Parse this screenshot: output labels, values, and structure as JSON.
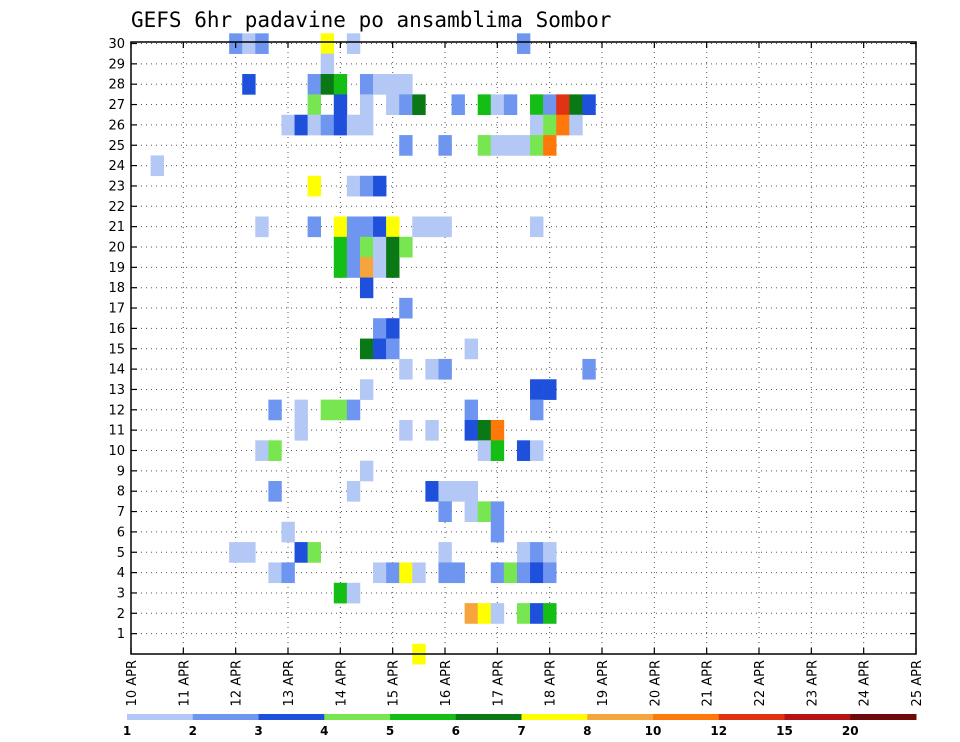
{
  "chart_data": {
    "type": "heatmap",
    "title": "GEFS 6hr padavine po ansamblima Sombor",
    "x_tick_labels": [
      "10 APR",
      "11 APR",
      "12 APR",
      "13 APR",
      "14 APR",
      "15 APR",
      "16 APR",
      "17 APR",
      "18 APR",
      "19 APR",
      "20 APR",
      "21 APR",
      "22 APR",
      "23 APR",
      "24 APR",
      "25 APR"
    ],
    "y_tick_labels": [
      "1",
      "2",
      "3",
      "4",
      "5",
      "6",
      "7",
      "8",
      "9",
      "10",
      "11",
      "12",
      "13",
      "14",
      "15",
      "16",
      "17",
      "18",
      "19",
      "20",
      "21",
      "22",
      "23",
      "24",
      "25",
      "26",
      "27",
      "28",
      "29",
      "30"
    ],
    "xlim": [
      "10 APR",
      "25 APR"
    ],
    "x_step_hours": 6,
    "ylim": [
      1,
      30
    ],
    "grid": true,
    "legend_position": "bottom",
    "legend_bins": [
      {
        "label": "1",
        "color": "#b4c8f5"
      },
      {
        "label": "2",
        "color": "#6e96f0"
      },
      {
        "label": "3",
        "color": "#1e50dc"
      },
      {
        "label": "4",
        "color": "#78e650"
      },
      {
        "label": "5",
        "color": "#14be14"
      },
      {
        "label": "6",
        "color": "#0a7814"
      },
      {
        "label": "7",
        "color": "#ffff00"
      },
      {
        "label": "8",
        "color": "#f5a53c"
      },
      {
        "label": "10",
        "color": "#ff780a"
      },
      {
        "label": "12",
        "color": "#e13214"
      },
      {
        "label": "15",
        "color": "#b41414"
      },
      {
        "label": "20",
        "color": "#6e0a0a"
      }
    ],
    "cells_note": "each cell: [time step index from 10 APR 00z in 6h steps, ensemble member, legend bin index]",
    "cells": [
      [
        8,
        30,
        1
      ],
      [
        9,
        30,
        0
      ],
      [
        10,
        30,
        1
      ],
      [
        15,
        30,
        6
      ],
      [
        17,
        30,
        0
      ],
      [
        30,
        30,
        1
      ],
      [
        15,
        29,
        0
      ],
      [
        9,
        28,
        2
      ],
      [
        14,
        28,
        1
      ],
      [
        15,
        28,
        5
      ],
      [
        16,
        28,
        4
      ],
      [
        18,
        28,
        1
      ],
      [
        19,
        28,
        0
      ],
      [
        20,
        28,
        0
      ],
      [
        21,
        28,
        0
      ],
      [
        14,
        27,
        3
      ],
      [
        16,
        27,
        2
      ],
      [
        18,
        27,
        0
      ],
      [
        20,
        27,
        0
      ],
      [
        21,
        27,
        1
      ],
      [
        22,
        27,
        5
      ],
      [
        25,
        27,
        1
      ],
      [
        27,
        27,
        4
      ],
      [
        28,
        27,
        0
      ],
      [
        29,
        27,
        1
      ],
      [
        31,
        27,
        4
      ],
      [
        32,
        27,
        1
      ],
      [
        33,
        27,
        9
      ],
      [
        34,
        27,
        5
      ],
      [
        35,
        27,
        2
      ],
      [
        12,
        26,
        0
      ],
      [
        13,
        26,
        2
      ],
      [
        14,
        26,
        0
      ],
      [
        15,
        26,
        1
      ],
      [
        16,
        26,
        2
      ],
      [
        17,
        26,
        0
      ],
      [
        18,
        26,
        0
      ],
      [
        31,
        26,
        0
      ],
      [
        32,
        26,
        3
      ],
      [
        33,
        26,
        8
      ],
      [
        34,
        26,
        0
      ],
      [
        21,
        25,
        1
      ],
      [
        24,
        25,
        1
      ],
      [
        27,
        25,
        3
      ],
      [
        28,
        25,
        0
      ],
      [
        29,
        25,
        0
      ],
      [
        30,
        25,
        0
      ],
      [
        31,
        25,
        3
      ],
      [
        32,
        25,
        8
      ],
      [
        2,
        24,
        0
      ],
      [
        14,
        23,
        6
      ],
      [
        17,
        23,
        0
      ],
      [
        18,
        23,
        1
      ],
      [
        19,
        23,
        2
      ],
      [
        10,
        21,
        0
      ],
      [
        14,
        21,
        1
      ],
      [
        16,
        21,
        6
      ],
      [
        17,
        21,
        1
      ],
      [
        18,
        21,
        1
      ],
      [
        19,
        21,
        2
      ],
      [
        20,
        21,
        6
      ],
      [
        22,
        21,
        0
      ],
      [
        23,
        21,
        0
      ],
      [
        24,
        21,
        0
      ],
      [
        31,
        21,
        0
      ],
      [
        16,
        20,
        4
      ],
      [
        17,
        20,
        1
      ],
      [
        18,
        20,
        3
      ],
      [
        19,
        20,
        0
      ],
      [
        20,
        20,
        5
      ],
      [
        21,
        20,
        3
      ],
      [
        16,
        19,
        4
      ],
      [
        17,
        19,
        1
      ],
      [
        18,
        19,
        7
      ],
      [
        19,
        19,
        0
      ],
      [
        20,
        19,
        5
      ],
      [
        18,
        18,
        2
      ],
      [
        21,
        17,
        1
      ],
      [
        19,
        16,
        1
      ],
      [
        20,
        16,
        2
      ],
      [
        18,
        15,
        5
      ],
      [
        19,
        15,
        2
      ],
      [
        20,
        15,
        1
      ],
      [
        26,
        15,
        0
      ],
      [
        21,
        14,
        0
      ],
      [
        23,
        14,
        0
      ],
      [
        24,
        14,
        1
      ],
      [
        35,
        14,
        1
      ],
      [
        18,
        13,
        0
      ],
      [
        31,
        13,
        2
      ],
      [
        32,
        13,
        2
      ],
      [
        11,
        12,
        1
      ],
      [
        13,
        12,
        0
      ],
      [
        15,
        12,
        3
      ],
      [
        16,
        12,
        3
      ],
      [
        17,
        12,
        1
      ],
      [
        26,
        12,
        1
      ],
      [
        31,
        12,
        1
      ],
      [
        13,
        11,
        0
      ],
      [
        21,
        11,
        0
      ],
      [
        23,
        11,
        0
      ],
      [
        26,
        11,
        2
      ],
      [
        27,
        11,
        5
      ],
      [
        28,
        11,
        8
      ],
      [
        10,
        10,
        0
      ],
      [
        11,
        10,
        3
      ],
      [
        27,
        10,
        0
      ],
      [
        28,
        10,
        4
      ],
      [
        30,
        10,
        2
      ],
      [
        31,
        10,
        0
      ],
      [
        18,
        9,
        0
      ],
      [
        11,
        8,
        1
      ],
      [
        17,
        8,
        0
      ],
      [
        23,
        8,
        2
      ],
      [
        24,
        8,
        0
      ],
      [
        25,
        8,
        0
      ],
      [
        26,
        8,
        0
      ],
      [
        24,
        7,
        1
      ],
      [
        26,
        7,
        0
      ],
      [
        27,
        7,
        3
      ],
      [
        28,
        7,
        1
      ],
      [
        12,
        6,
        0
      ],
      [
        28,
        6,
        1
      ],
      [
        8,
        5,
        0
      ],
      [
        9,
        5,
        0
      ],
      [
        13,
        5,
        2
      ],
      [
        14,
        5,
        3
      ],
      [
        24,
        5,
        0
      ],
      [
        30,
        5,
        0
      ],
      [
        31,
        5,
        1
      ],
      [
        32,
        5,
        0
      ],
      [
        11,
        4,
        0
      ],
      [
        12,
        4,
        1
      ],
      [
        19,
        4,
        0
      ],
      [
        20,
        4,
        1
      ],
      [
        21,
        4,
        6
      ],
      [
        22,
        4,
        0
      ],
      [
        24,
        4,
        1
      ],
      [
        25,
        4,
        1
      ],
      [
        28,
        4,
        1
      ],
      [
        29,
        4,
        3
      ],
      [
        30,
        4,
        1
      ],
      [
        31,
        4,
        2
      ],
      [
        32,
        4,
        1
      ],
      [
        16,
        3,
        4
      ],
      [
        17,
        3,
        0
      ],
      [
        26,
        2,
        7
      ],
      [
        27,
        2,
        6
      ],
      [
        28,
        2,
        0
      ],
      [
        30,
        2,
        3
      ],
      [
        31,
        2,
        2
      ],
      [
        32,
        2,
        4
      ],
      [
        22,
        0,
        6
      ]
    ]
  }
}
